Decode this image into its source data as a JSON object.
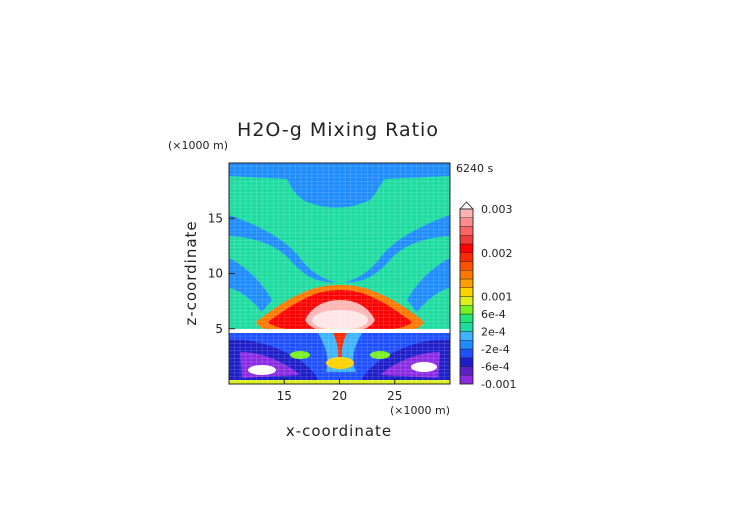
{
  "chart_data": {
    "type": "heatmap",
    "title": "H2O-g Mixing Ratio",
    "time_label": "6240 s",
    "xlabel": "x-coordinate",
    "ylabel": "z-coordinate",
    "x_unit": "(×1000 m)",
    "y_unit": "(×1000 m)",
    "xlim": [
      10,
      30
    ],
    "ylim": [
      0,
      20
    ],
    "x_ticks": [
      15,
      20,
      25
    ],
    "y_ticks": [
      5,
      10,
      15
    ],
    "colorbar": {
      "levels": [
        -0.001,
        -0.0008,
        -0.0006,
        -0.0004,
        -0.0002,
        0,
        0.0002,
        0.0004,
        0.0006,
        0.0008,
        0.001,
        0.0012,
        0.0014,
        0.0016,
        0.0018,
        0.002,
        0.0022,
        0.0024,
        0.0026,
        0.0028,
        0.003
      ],
      "colors": [
        "#8a2be2",
        "#5a20c8",
        "#1e1ec8",
        "#1e50ff",
        "#1e8cff",
        "#3cb4ff",
        "#1edca0",
        "#1ee678",
        "#78f01e",
        "#dcf01e",
        "#ffd200",
        "#ffa000",
        "#ff7800",
        "#ff5000",
        "#ff2800",
        "#ff0000",
        "#f03c3c",
        "#ff6464",
        "#ff8c8c",
        "#ffb4b4"
      ],
      "tick_labels": [
        "0.003",
        "0.002",
        "0.001",
        "6e-4",
        "2e-4",
        "-2e-4",
        "-6e-4",
        "-0.001"
      ],
      "tick_values": [
        0.003,
        0.002,
        0.001,
        0.0006,
        0.0002,
        -0.0002,
        -0.0006,
        -0.001
      ]
    },
    "regions": [
      {
        "feature": "background",
        "level": 0.0001
      },
      {
        "feature": "upper-blue-band",
        "level": -0.0003
      },
      {
        "feature": "upper-arc-blue",
        "level": -0.0003
      },
      {
        "feature": "central-plume-red",
        "level": 0.0021
      },
      {
        "feature": "plume-core-white",
        "level": 0.0029
      },
      {
        "feature": "lower-dark-blue",
        "level": -0.0006
      },
      {
        "feature": "lower-purple",
        "level": -0.0009
      },
      {
        "feature": "surface-layer",
        "level": 0.0009
      }
    ]
  }
}
